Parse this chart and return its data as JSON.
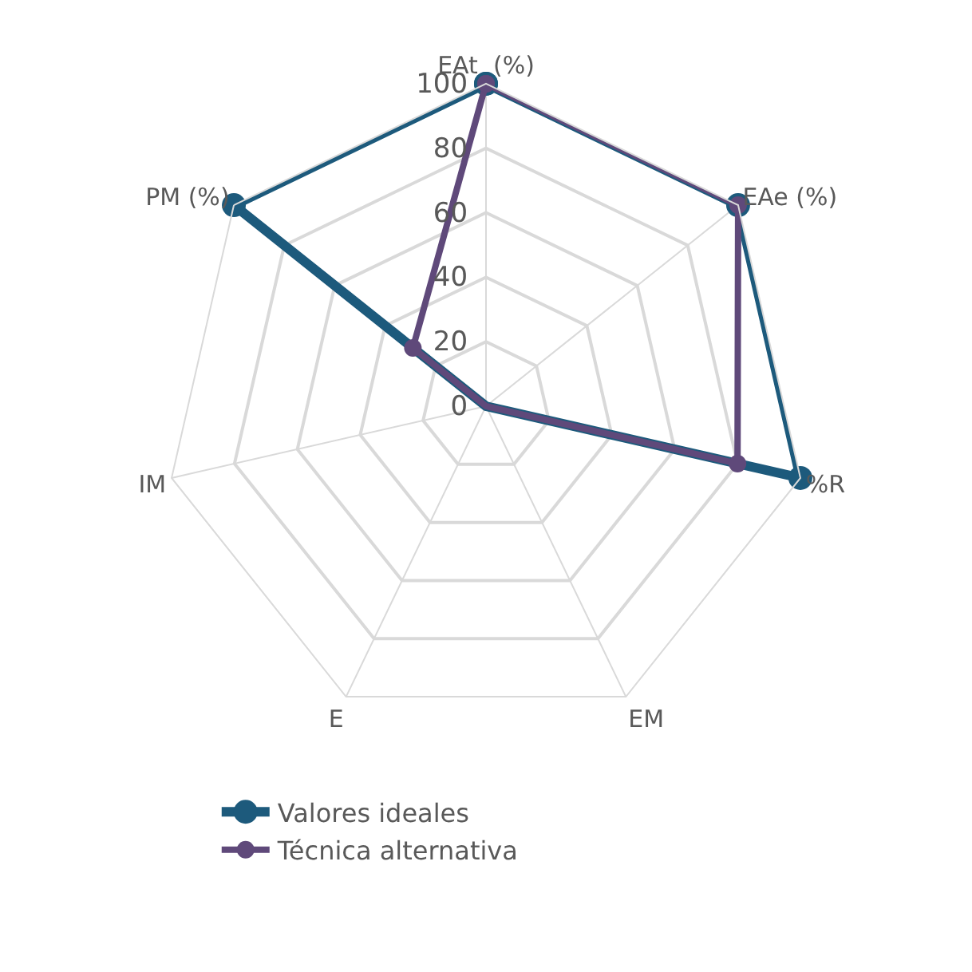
{
  "chart_data": {
    "type": "radar",
    "categories": [
      "EAt  (%)",
      "EAe (%)",
      "%R",
      "EM",
      "E",
      "IM",
      "PM (%)"
    ],
    "series": [
      {
        "name": "Valores ideales",
        "color": "#1d5a7c",
        "values": [
          100,
          100,
          100,
          0,
          0,
          0,
          100
        ]
      },
      {
        "name": "Técnica alternativa",
        "color": "#5f497a",
        "values": [
          100,
          100,
          80,
          0,
          0,
          0,
          29
        ]
      }
    ],
    "ylim": [
      0,
      100
    ],
    "yticks": [
      0,
      20,
      40,
      60,
      80,
      100
    ],
    "grid": true,
    "legend": "bottom",
    "marker": "circle",
    "line_style": "solid"
  }
}
